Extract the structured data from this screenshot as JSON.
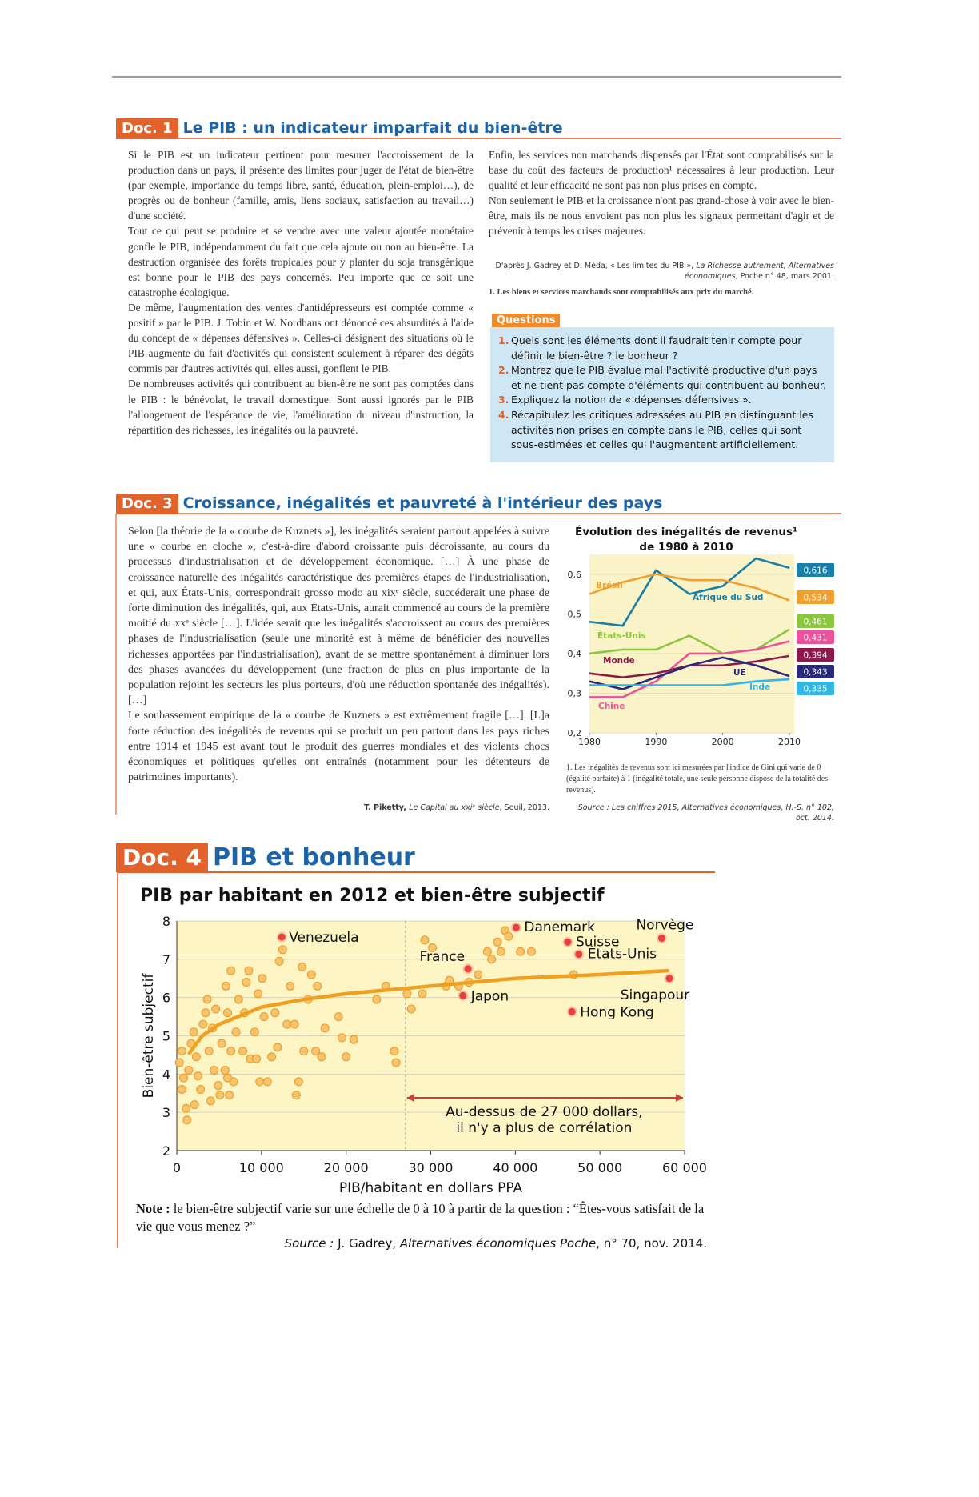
{
  "header": {
    "rule": true
  },
  "doc1": {
    "label": "Doc. 1",
    "title": "Le PIB : un indicateur imparfait du bien-être",
    "left": [
      "Si le PIB est un indicateur pertinent pour mesurer l'accroissement de la production dans un pays, il présente des limites pour juger de l'état de bien-être (par exemple, importance du temps libre, santé, éducation, plein-emploi…), de progrès ou de bonheur (famille, amis, liens sociaux, satisfaction au travail…) d'une société.",
      "Tout ce qui peut se produire et se vendre avec une valeur ajoutée monétaire gonfle le PIB, indépendamment du fait que cela ajoute ou non au bien-être. La destruction organisée des forêts tropicales pour y planter du soja transgénique est bonne pour le PIB des pays concernés. Peu importe que ce soit une catastrophe écologique.",
      "De même, l'augmentation des ventes d'antidépresseurs est comptée comme « positif » par le PIB. J. Tobin et W. Nordhaus ont dénoncé ces absurdités à l'aide du concept de « dépenses défensives ». Celles-ci désignent des situations où le PIB augmente du fait d'activités qui consistent seulement à réparer des dégâts commis par d'autres activités qui, elles aussi, gonflent le PIB.",
      "De nombreuses activités qui contribuent au bien-être ne sont pas comptées dans le PIB : le bénévolat, le travail domestique. Sont aussi ignorés par le PIB l'allongement de l'espérance de vie, l'amélioration du niveau d'instruction, la répartition des richesses, les inégalités ou la pauvreté."
    ],
    "right": [
      "Enfin, les services non marchands dispensés par l'État sont comptabilisés sur la base du coût des facteurs de production¹ nécessaires à leur production. Leur qualité et leur efficacité ne sont pas non plus prises en compte.",
      "Non seulement le PIB et la croissance n'ont pas grand-chose à voir avec le bien-être, mais ils ne nous envoient pas non plus les signaux permettant d'agir et de prévenir à temps les crises majeures."
    ],
    "source": {
      "prefix": "D'après J. Gadrey et D. Méda, « Les limites du PIB », ",
      "italic": "La Richesse autrement, Alternatives économiques",
      "suffix": ", Poche n° 48, mars 2001."
    },
    "footnote": "1. Les biens et services marchands sont comptabilisés aux prix du marché.",
    "questions": {
      "title": "Questions",
      "items": [
        {
          "number": "1.",
          "text": "Quels sont les éléments dont il faudrait tenir compte pour définir le bien-être ? le bonheur ?"
        },
        {
          "number": "2.",
          "text": "Montrez que le PIB évalue mal l'activité productive d'un pays et ne tient pas compte d'éléments qui contribuent au bonheur."
        },
        {
          "number": "3.",
          "text": "Expliquez la notion de « dépenses défensives »."
        },
        {
          "number": "4.",
          "text": "Récapitulez les critiques adressées au PIB en distinguant les activités non prises en compte dans le PIB, celles qui sont sous-estimées et celles qui l'augmentent artificiellement."
        }
      ]
    }
  },
  "doc3": {
    "label": "Doc. 3",
    "title": "Croissance, inégalités et pauvreté à l'intérieur des pays",
    "text": [
      "Selon [la théorie de la « courbe de Kuznets »], les inégalités seraient partout appelées à suivre une « courbe en cloche », c'est-à-dire d'abord croissante puis décroissante, au cours du processus d'industrialisation et de développement économique. […] À une phase de croissance naturelle des inégalités caractéristique des premières étapes de l'industrialisation, et qui, aux États-Unis, correspondrait grosso modo au xixᵉ siècle, succéderait une phase de forte diminution des inégalités, qui, aux États-Unis, aurait commencé au cours de la première moitié du xxᵉ siècle […]. L'idée serait que les inégalités s'accroissent au cours des premières phases de l'industrialisation (seule une minorité est à même de bénéficier des nouvelles richesses apportées par l'industrialisation), avant de se mettre spontanément à diminuer lors des phases avancées du développement (une fraction de plus en plus importante de la population rejoint les secteurs les plus porteurs, d'où une réduction spontanée des inégalités). […]",
      "Le soubassement empirique de la « courbe de Kuznets » est extrêmement fragile […]. [L]a forte réduction des inégalités de revenus qui se produit un peu partout dans les pays riches entre 1914 et 1945 est avant tout le produit des guerres mondiales et des violents chocs économiques et politiques qu'elles ont entraînés (notamment pour les détenteurs de patrimoines importants)."
    ],
    "source": {
      "prefix": "T. Piketty, ",
      "italic": "Le Capital au xxiᵉ siècle",
      "suffix": ", Seuil, 2013."
    },
    "chart_footnote": "1. Les inégalités de revenus sont ici mesurées par l'indice de Gini qui varie de 0 (égalité parfaite) à 1 (inégalité totale, une seule personne dispose de la totalité des revenus).",
    "chart_source": "Source : Les chiffres 2015, Alternatives économiques, H.-S. n° 102, oct. 2014."
  },
  "doc4": {
    "label": "Doc. 4",
    "title": "PIB et bonheur",
    "note": {
      "bold": "Note :",
      "text": " le bien-être subjectif varie sur une échelle de 0 à 10 à partir de la question : “Êtes-vous satisfait de la vie que vous menez ?”"
    },
    "source": {
      "italic": "Source :",
      "author": " J. Gadrey, ",
      "journal": "Alternatives économiques Poche",
      "suffix": ", n° 70, nov. 2014."
    }
  },
  "chart_data": [
    {
      "type": "line",
      "title": [
        "Évolution des inégalités de revenus¹",
        "de 1980 à 2010"
      ],
      "x": [
        1980,
        1985,
        1990,
        1995,
        2000,
        2005,
        2010
      ],
      "xlim": [
        1980,
        2010
      ],
      "xticks": [
        1980,
        1990,
        2000,
        2010
      ],
      "ylim": [
        0.2,
        0.65
      ],
      "yticks": [
        {
          "value": 0.2,
          "label": "0,2"
        },
        {
          "value": 0.3,
          "label": "0,3"
        },
        {
          "value": 0.4,
          "label": "0,4"
        },
        {
          "value": 0.5,
          "label": "0,5"
        },
        {
          "value": 0.6,
          "label": "0,6"
        }
      ],
      "grid": true,
      "series": [
        {
          "name": "Afrique du Sud",
          "color": "#1a7fa6",
          "values": [
            0.48,
            0.47,
            0.61,
            0.55,
            0.57,
            0.64,
            0.616
          ],
          "value_label": "0,616"
        },
        {
          "name": "Brésil",
          "color": "#f0a030",
          "values": [
            0.55,
            0.58,
            0.6,
            0.585,
            0.585,
            0.565,
            0.534
          ],
          "value_label": "0,534"
        },
        {
          "name": "États-Unis",
          "color": "#8cc63f",
          "values": [
            0.4,
            0.41,
            0.41,
            0.445,
            0.4,
            0.41,
            0.461
          ],
          "value_label": "0,461"
        },
        {
          "name": "Chine",
          "color": "#e8539a",
          "values": [
            0.29,
            0.29,
            0.33,
            0.4,
            0.4,
            0.41,
            0.431
          ],
          "value_label": "0,431"
        },
        {
          "name": "Monde",
          "color": "#8b1a4a",
          "values": [
            0.35,
            0.34,
            0.35,
            0.37,
            0.37,
            0.38,
            0.394
          ],
          "value_label": "0,394"
        },
        {
          "name": "UE",
          "color": "#2a2a7a",
          "values": [
            0.33,
            0.31,
            0.34,
            0.37,
            0.39,
            0.37,
            0.343
          ],
          "value_label": "0,343"
        },
        {
          "name": "Inde",
          "color": "#35b5e5",
          "values": [
            0.32,
            0.32,
            0.32,
            0.32,
            0.32,
            0.33,
            0.335
          ],
          "value_label": "0,335"
        }
      ]
    },
    {
      "type": "scatter",
      "title": "PIB par habitant en 2012 et bien-être subjectif",
      "x_label": "PIB/habitant en dollars PPA",
      "y_label": "Bien-être subjectif",
      "xlim": [
        0,
        60000
      ],
      "xticks": [
        0,
        {
          "value": 10000,
          "label": "10 000"
        },
        {
          "value": 20000,
          "label": "20 000"
        },
        {
          "value": 30000,
          "label": "30 000"
        },
        {
          "value": 40000,
          "label": "40 000"
        },
        {
          "value": 50000,
          "label": "50 000"
        },
        {
          "value": 60000,
          "label": "60 000"
        }
      ],
      "ylim": [
        2,
        8
      ],
      "yticks": [
        2,
        3,
        4,
        5,
        6,
        7,
        8
      ],
      "grid": true,
      "point_color": "#f7c36b",
      "highlight_color": "#e8403a",
      "trend_color": "#f0a020",
      "points": {
        "x": [
          600,
          800,
          1100,
          1200,
          300,
          600,
          1700,
          2000,
          1400,
          2300,
          2500,
          2800,
          3100,
          3400,
          3600,
          3800,
          4200,
          4400,
          4600,
          4900,
          5100,
          5300,
          5700,
          5800,
          6000,
          6200,
          6400,
          6700,
          7000,
          7300,
          7800,
          8000,
          8200,
          8500,
          8700,
          9200,
          9400,
          9600,
          9800,
          10100,
          10300,
          10700,
          11200,
          11600,
          11900,
          12100,
          12500,
          13000,
          13400,
          13900,
          14100,
          14400,
          14800,
          15000,
          15500,
          15900,
          16400,
          16600,
          17100,
          17500,
          19100,
          19500,
          20000,
          20900,
          23600,
          24700,
          25700,
          25900,
          27200,
          27700,
          29000,
          29300,
          30200,
          31800,
          32200,
          33300,
          34500,
          35600,
          36700,
          37200,
          37900,
          38300,
          38800,
          39200,
          40600,
          41900,
          46900,
          2100,
          4000,
          6400,
          6000
        ],
        "y": [
          3.6,
          3.9,
          3.1,
          2.8,
          4.3,
          4.6,
          4.8,
          5.1,
          4.1,
          4.45,
          3.95,
          3.6,
          5.3,
          5.6,
          5.95,
          4.6,
          5.2,
          4.1,
          5.7,
          3.7,
          3.45,
          4.8,
          4.1,
          6.3,
          5.6,
          3.45,
          6.7,
          3.8,
          5.1,
          5.95,
          4.6,
          5.6,
          6.4,
          6.7,
          4.4,
          5.1,
          4.4,
          6.1,
          3.8,
          6.5,
          5.5,
          3.8,
          4.45,
          5.6,
          4.7,
          6.95,
          7.25,
          5.3,
          6.3,
          5.3,
          3.45,
          3.8,
          6.8,
          4.6,
          5.95,
          6.6,
          4.6,
          6.3,
          4.45,
          5.2,
          5.5,
          4.95,
          4.45,
          4.9,
          5.95,
          6.3,
          4.6,
          4.3,
          6.1,
          5.7,
          6.1,
          7.5,
          7.3,
          6.3,
          6.45,
          6.3,
          6.4,
          6.6,
          7.2,
          7.0,
          7.45,
          7.2,
          7.75,
          7.6,
          7.2,
          7.2,
          6.6,
          3.2,
          3.3,
          4.6,
          3.9
        ]
      },
      "countries": [
        {
          "name": "Venezuela",
          "x": 12400,
          "y": 7.58
        },
        {
          "name": "Danemark",
          "x": 40100,
          "y": 7.83
        },
        {
          "name": "Norvège",
          "x": 57300,
          "y": 7.55
        },
        {
          "name": "Suisse",
          "x": 46200,
          "y": 7.45
        },
        {
          "name": "États-Unis",
          "x": 47500,
          "y": 7.13
        },
        {
          "name": "France",
          "x": 34400,
          "y": 6.75
        },
        {
          "name": "Japon",
          "x": 33800,
          "y": 6.05
        },
        {
          "name": "Singapour",
          "x": 58200,
          "y": 6.5
        },
        {
          "name": "Hong Kong",
          "x": 46700,
          "y": 5.63
        }
      ],
      "trend": {
        "x": [
          1500,
          3000,
          5000,
          10000,
          15000,
          20000,
          30000,
          40000,
          50000,
          58000
        ],
        "y": [
          4.55,
          5.0,
          5.3,
          5.75,
          5.95,
          6.1,
          6.3,
          6.5,
          6.6,
          6.7
        ]
      },
      "threshold": 27000,
      "annotation": [
        "Au-dessus de 27 000 dollars,",
        "il n'y a plus de corrélation"
      ]
    }
  ]
}
